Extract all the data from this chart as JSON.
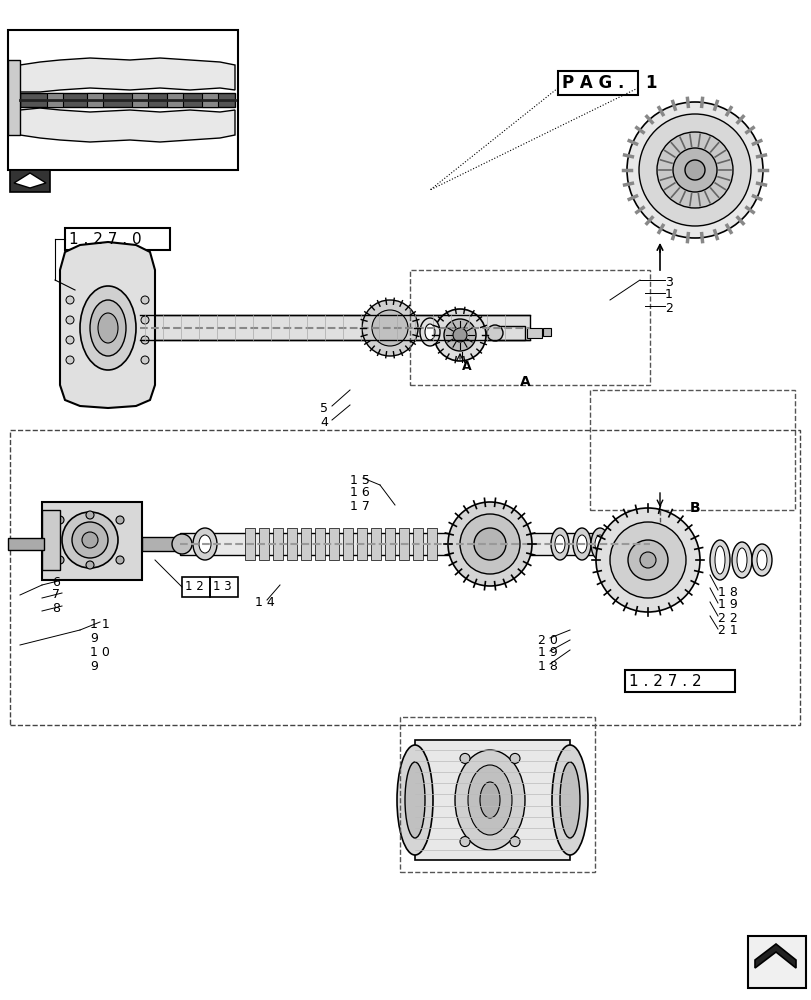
{
  "bg_color": "#ffffff",
  "line_color": "#000000",
  "fig_width": 8.12,
  "fig_height": 10.0,
  "dpi": 100,
  "labels": {
    "pag": "P A G .",
    "pag_num": "1",
    "ref_127_0": "1 . 2 7 . 0",
    "ref_127_2": "1 . 2 7 . 2",
    "label_A": "A",
    "label_B": "B",
    "label_A_arrow": "A",
    "num1": "1",
    "num2": "2",
    "num3": "3",
    "num4": "4",
    "num5": "5",
    "num6": "6",
    "num7": "7",
    "num8": "8",
    "num9a": "9",
    "num9b": "9",
    "num10": "1 0",
    "num11": "1 1",
    "num12": "1 2",
    "num13": "1 3",
    "num14": "1 4",
    "num15": "1 5",
    "num16": "1 6",
    "num17": "1 7",
    "num18a": "1 8",
    "num18b": "1 8",
    "num19a": "1 9",
    "num19b": "1 9",
    "num20": "2 0",
    "num21": "2 1",
    "num22": "2 2"
  }
}
